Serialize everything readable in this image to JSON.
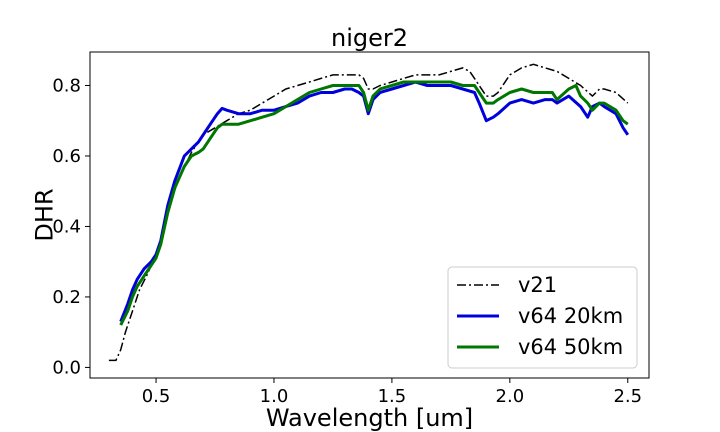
{
  "chart_data": {
    "type": "line",
    "title": "niger2",
    "xlabel": "Wavelength [um]",
    "ylabel": "DHR",
    "xlim": [
      0.22,
      2.59
    ],
    "ylim": [
      -0.03,
      0.895
    ],
    "xticks": [
      0.5,
      1.0,
      1.5,
      2.0,
      2.5
    ],
    "xtick_labels": [
      "0.5",
      "1.0",
      "1.5",
      "2.0",
      "2.5"
    ],
    "yticks": [
      0.0,
      0.2,
      0.4,
      0.6,
      0.8
    ],
    "ytick_labels": [
      "0.0",
      "0.2",
      "0.4",
      "0.6",
      "0.8"
    ],
    "grid": false,
    "legend_position": "lower-right",
    "series": [
      {
        "name": "v21",
        "color": "#000000",
        "style": "dashdot",
        "x": [
          0.3,
          0.33,
          0.35,
          0.37,
          0.4,
          0.43,
          0.46,
          0.5,
          0.53,
          0.56,
          0.6,
          0.65,
          0.7,
          0.75,
          0.8,
          0.85,
          0.9,
          0.95,
          1.0,
          1.05,
          1.1,
          1.15,
          1.2,
          1.25,
          1.3,
          1.33,
          1.36,
          1.38,
          1.4,
          1.42,
          1.45,
          1.5,
          1.55,
          1.6,
          1.65,
          1.7,
          1.75,
          1.8,
          1.83,
          1.85,
          1.87,
          1.9,
          1.93,
          1.95,
          2.0,
          2.05,
          2.1,
          2.15,
          2.2,
          2.25,
          2.3,
          2.35,
          2.38,
          2.4,
          2.45,
          2.5
        ],
        "y": [
          0.02,
          0.02,
          0.05,
          0.1,
          0.16,
          0.22,
          0.26,
          0.32,
          0.38,
          0.47,
          0.54,
          0.61,
          0.66,
          0.68,
          0.7,
          0.72,
          0.73,
          0.75,
          0.77,
          0.79,
          0.8,
          0.81,
          0.82,
          0.83,
          0.83,
          0.83,
          0.83,
          0.82,
          0.79,
          0.79,
          0.8,
          0.81,
          0.82,
          0.83,
          0.83,
          0.83,
          0.84,
          0.85,
          0.84,
          0.82,
          0.8,
          0.77,
          0.77,
          0.78,
          0.83,
          0.85,
          0.86,
          0.85,
          0.84,
          0.82,
          0.8,
          0.77,
          0.79,
          0.79,
          0.78,
          0.75
        ]
      },
      {
        "name": "v64 20km",
        "color": "#0000dd",
        "style": "solid",
        "x": [
          0.35,
          0.38,
          0.4,
          0.42,
          0.45,
          0.48,
          0.5,
          0.52,
          0.55,
          0.58,
          0.62,
          0.65,
          0.68,
          0.7,
          0.73,
          0.76,
          0.78,
          0.8,
          0.85,
          0.9,
          0.95,
          1.0,
          1.05,
          1.1,
          1.15,
          1.2,
          1.25,
          1.3,
          1.33,
          1.36,
          1.38,
          1.4,
          1.42,
          1.45,
          1.5,
          1.55,
          1.6,
          1.65,
          1.7,
          1.75,
          1.8,
          1.85,
          1.87,
          1.9,
          1.93,
          1.95,
          2.0,
          2.05,
          2.1,
          2.15,
          2.18,
          2.2,
          2.25,
          2.3,
          2.33,
          2.35,
          2.38,
          2.4,
          2.45,
          2.48,
          2.5
        ],
        "y": [
          0.13,
          0.18,
          0.22,
          0.25,
          0.28,
          0.3,
          0.32,
          0.36,
          0.46,
          0.53,
          0.6,
          0.62,
          0.64,
          0.66,
          0.69,
          0.72,
          0.735,
          0.73,
          0.72,
          0.72,
          0.73,
          0.73,
          0.74,
          0.75,
          0.77,
          0.78,
          0.78,
          0.79,
          0.79,
          0.78,
          0.77,
          0.72,
          0.76,
          0.78,
          0.79,
          0.8,
          0.81,
          0.8,
          0.8,
          0.8,
          0.79,
          0.78,
          0.75,
          0.7,
          0.71,
          0.72,
          0.75,
          0.76,
          0.75,
          0.76,
          0.76,
          0.75,
          0.77,
          0.74,
          0.71,
          0.74,
          0.75,
          0.74,
          0.72,
          0.68,
          0.66
        ]
      },
      {
        "name": "v64 50km",
        "color": "#007700",
        "style": "solid",
        "x": [
          0.35,
          0.38,
          0.4,
          0.42,
          0.45,
          0.48,
          0.5,
          0.52,
          0.55,
          0.58,
          0.62,
          0.65,
          0.68,
          0.7,
          0.73,
          0.76,
          0.78,
          0.8,
          0.85,
          0.9,
          0.95,
          1.0,
          1.05,
          1.1,
          1.15,
          1.2,
          1.25,
          1.3,
          1.33,
          1.36,
          1.38,
          1.4,
          1.42,
          1.45,
          1.5,
          1.55,
          1.6,
          1.65,
          1.7,
          1.75,
          1.8,
          1.85,
          1.87,
          1.9,
          1.93,
          1.95,
          2.0,
          2.05,
          2.1,
          2.15,
          2.18,
          2.2,
          2.25,
          2.28,
          2.3,
          2.33,
          2.35,
          2.38,
          2.4,
          2.45,
          2.48,
          2.5
        ],
        "y": [
          0.12,
          0.16,
          0.2,
          0.23,
          0.26,
          0.29,
          0.31,
          0.35,
          0.44,
          0.51,
          0.57,
          0.6,
          0.61,
          0.62,
          0.65,
          0.68,
          0.69,
          0.69,
          0.69,
          0.7,
          0.71,
          0.72,
          0.74,
          0.76,
          0.78,
          0.79,
          0.8,
          0.8,
          0.8,
          0.8,
          0.78,
          0.73,
          0.77,
          0.79,
          0.8,
          0.81,
          0.81,
          0.81,
          0.81,
          0.81,
          0.8,
          0.8,
          0.78,
          0.75,
          0.75,
          0.76,
          0.78,
          0.79,
          0.78,
          0.78,
          0.78,
          0.76,
          0.79,
          0.8,
          0.77,
          0.75,
          0.73,
          0.75,
          0.75,
          0.73,
          0.7,
          0.69
        ]
      }
    ]
  }
}
